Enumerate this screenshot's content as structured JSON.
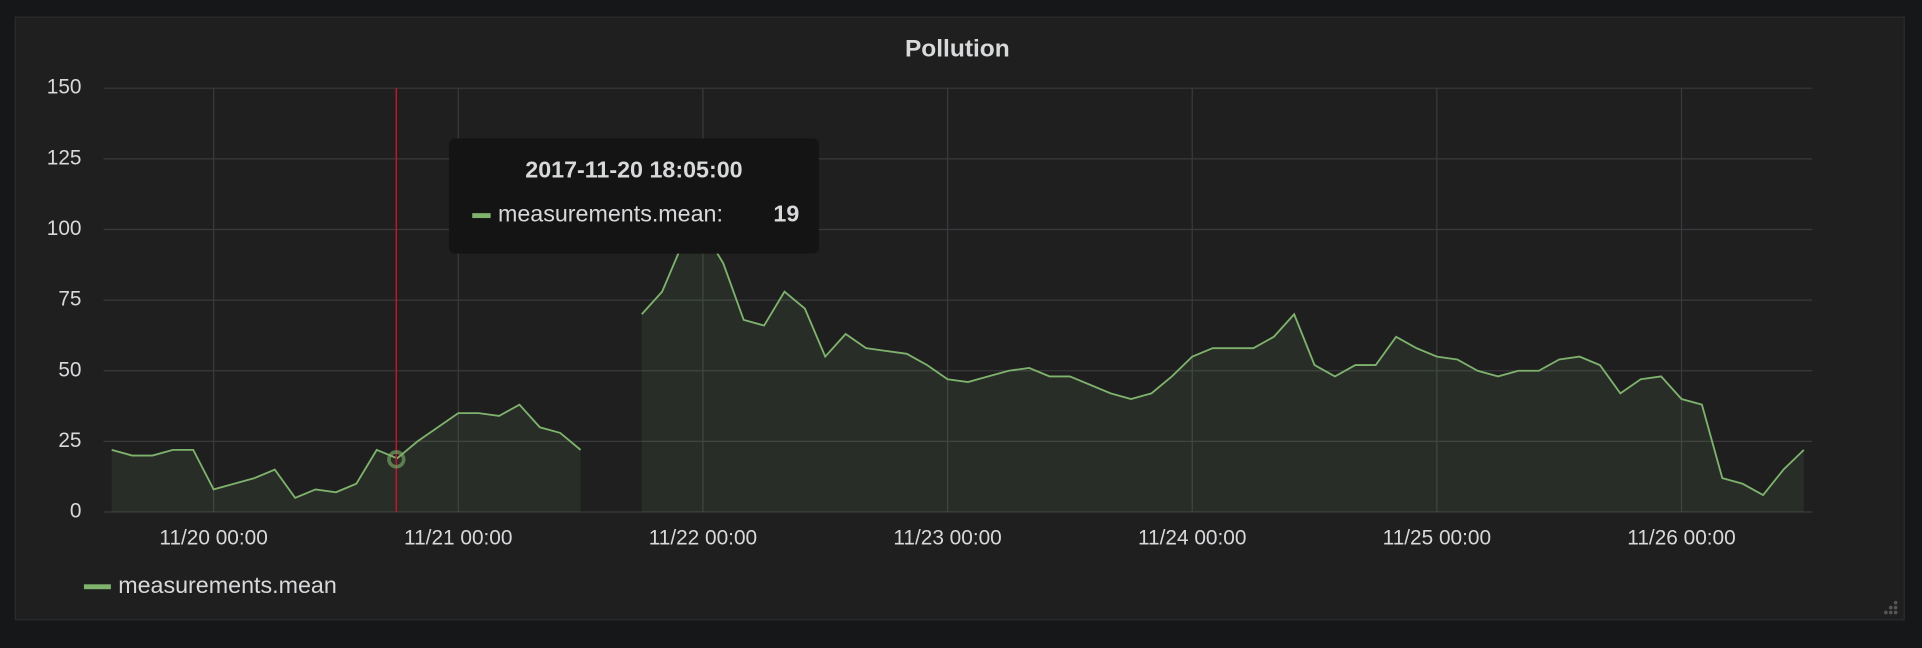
{
  "chart_data": {
    "type": "line",
    "title": "Pollution",
    "x": [
      "11/19 14:00",
      "11/19 16:00",
      "11/19 18:00",
      "11/19 20:00",
      "11/19 22:00",
      "11/20 00:00",
      "11/20 02:00",
      "11/20 04:00",
      "11/20 06:00",
      "11/20 08:00",
      "11/20 10:00",
      "11/20 12:00",
      "11/20 14:00",
      "11/20 16:00",
      "11/20 18:00",
      "11/20 20:00",
      "11/20 22:00",
      "11/21 00:00",
      "11/21 02:00",
      "11/21 04:00",
      "11/21 06:00",
      "11/21 08:00",
      "11/21 10:00",
      "11/21 12:00",
      "11/21 14:00",
      "11/21 16:00",
      "11/21 18:00",
      "11/21 20:00",
      "11/21 22:00",
      "11/22 00:00",
      "11/22 02:00",
      "11/22 04:00",
      "11/22 06:00",
      "11/22 08:00",
      "11/22 10:00",
      "11/22 12:00",
      "11/22 14:00",
      "11/22 16:00",
      "11/22 18:00",
      "11/22 20:00",
      "11/22 22:00",
      "11/23 00:00",
      "11/23 02:00",
      "11/23 04:00",
      "11/23 06:00",
      "11/23 08:00",
      "11/23 10:00",
      "11/23 12:00",
      "11/23 14:00",
      "11/23 16:00",
      "11/23 18:00",
      "11/23 20:00",
      "11/23 22:00",
      "11/24 00:00",
      "11/24 02:00",
      "11/24 04:00",
      "11/24 06:00",
      "11/24 08:00",
      "11/24 10:00",
      "11/24 12:00",
      "11/24 14:00",
      "11/24 16:00",
      "11/24 18:00",
      "11/24 20:00",
      "11/24 22:00",
      "11/25 00:00",
      "11/25 02:00",
      "11/25 04:00",
      "11/25 06:00",
      "11/25 08:00",
      "11/25 10:00",
      "11/25 12:00",
      "11/25 14:00",
      "11/25 16:00",
      "11/25 18:00",
      "11/25 20:00",
      "11/25 22:00",
      "11/26 00:00",
      "11/26 02:00",
      "11/26 04:00",
      "11/26 06:00",
      "11/26 08:00",
      "11/26 10:00",
      "11/26 12:00"
    ],
    "series": [
      {
        "name": "measurements.mean",
        "color": "#7eb26d",
        "values": [
          22,
          20,
          20,
          22,
          22,
          8,
          10,
          12,
          15,
          5,
          8,
          7,
          10,
          22,
          19,
          25,
          30,
          35,
          35,
          34,
          38,
          30,
          28,
          22,
          null,
          null,
          70,
          78,
          95,
          100,
          88,
          68,
          66,
          78,
          72,
          55,
          63,
          58,
          57,
          56,
          52,
          47,
          46,
          48,
          50,
          51,
          48,
          48,
          45,
          42,
          40,
          42,
          48,
          55,
          58,
          58,
          58,
          62,
          70,
          52,
          48,
          52,
          52,
          62,
          58,
          55,
          54,
          50,
          48,
          50,
          50,
          54,
          55,
          52,
          42,
          47,
          48,
          40,
          38,
          12,
          10,
          6,
          15,
          22
        ]
      }
    ],
    "xlim": [
      "11/19 13:12",
      "11/26 12:50"
    ],
    "xticks": [
      "11/20 00:00",
      "11/21 00:00",
      "11/22 00:00",
      "11/23 00:00",
      "11/24 00:00",
      "11/25 00:00",
      "11/26 00:00"
    ],
    "ylim": [
      0,
      150
    ],
    "yticks": [
      0,
      25,
      50,
      75,
      100,
      125,
      150
    ],
    "grid": true,
    "legend": "bottom-left",
    "tooltip": {
      "time": "2017-11-20 18:05:00",
      "label": "measurements.mean:",
      "value": 19
    }
  }
}
